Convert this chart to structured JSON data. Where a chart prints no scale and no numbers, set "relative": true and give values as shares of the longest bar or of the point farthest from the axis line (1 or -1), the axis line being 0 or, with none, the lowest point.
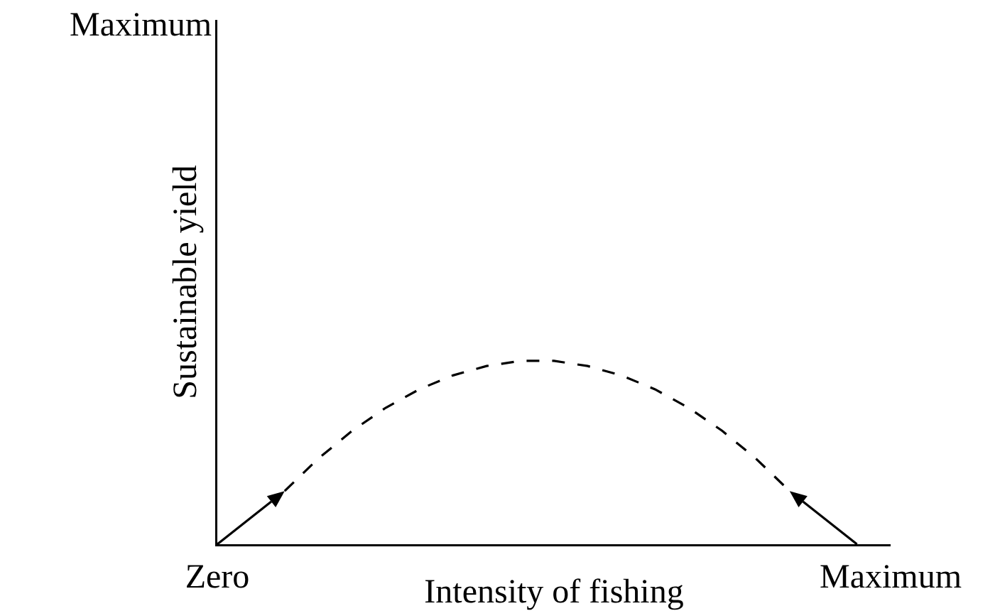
{
  "chart_data": {
    "type": "line",
    "relative": true,
    "xlabel": "Intensity of fishing",
    "ylabel": "Sustainable yield",
    "categories": [
      "Zero",
      null,
      null,
      null,
      null,
      null,
      null,
      null,
      null,
      null,
      null,
      null,
      null,
      null,
      null,
      null,
      null,
      null,
      null,
      null,
      "Maximum"
    ],
    "annotations": [
      "Maximum"
    ],
    "grid": false,
    "series": [
      {
        "color": "#000000",
        "line_style": "dashed",
        "marker": "none",
        "values": [
          null,
          null,
          0.29,
          0.467,
          0.618,
          0.744,
          0.845,
          0.921,
          0.972,
          1,
          1,
          0.972,
          0.921,
          0.845,
          0.744,
          0.618,
          0.467,
          0.29,
          null,
          null,
          null
        ]
      }
    ]
  }
}
